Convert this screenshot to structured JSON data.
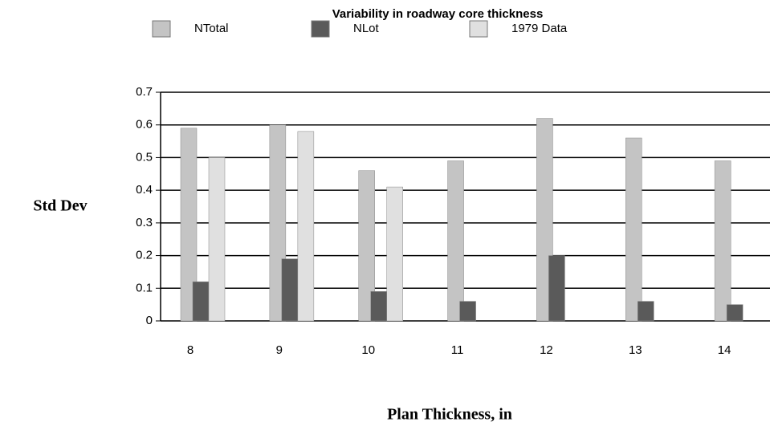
{
  "chart_data": {
    "type": "bar",
    "title": "Variability in roadway core thickness",
    "ylabel": "Std Dev",
    "xlabel": "Plan Thickness, in",
    "categories": [
      "8",
      "9",
      "10",
      "11",
      "12",
      "13",
      "14"
    ],
    "series": [
      {
        "name": "NTotal",
        "color": "#c4c4c4",
        "values": [
          0.59,
          0.6,
          0.46,
          0.49,
          0.62,
          0.56,
          0.49
        ]
      },
      {
        "name": "NLot",
        "color": "#5a5a5a",
        "values": [
          0.12,
          0.19,
          0.09,
          0.06,
          0.2,
          0.06,
          0.05
        ]
      },
      {
        "name": "1979 Data",
        "color": "#e0e0e0",
        "values": [
          0.5,
          0.58,
          0.41,
          null,
          null,
          null,
          null
        ]
      }
    ],
    "ylim": [
      0,
      0.7
    ],
    "yticks": [
      0,
      0.1,
      0.2,
      0.3,
      0.4,
      0.5,
      0.6,
      0.7
    ],
    "grid": true,
    "legend": "top"
  }
}
